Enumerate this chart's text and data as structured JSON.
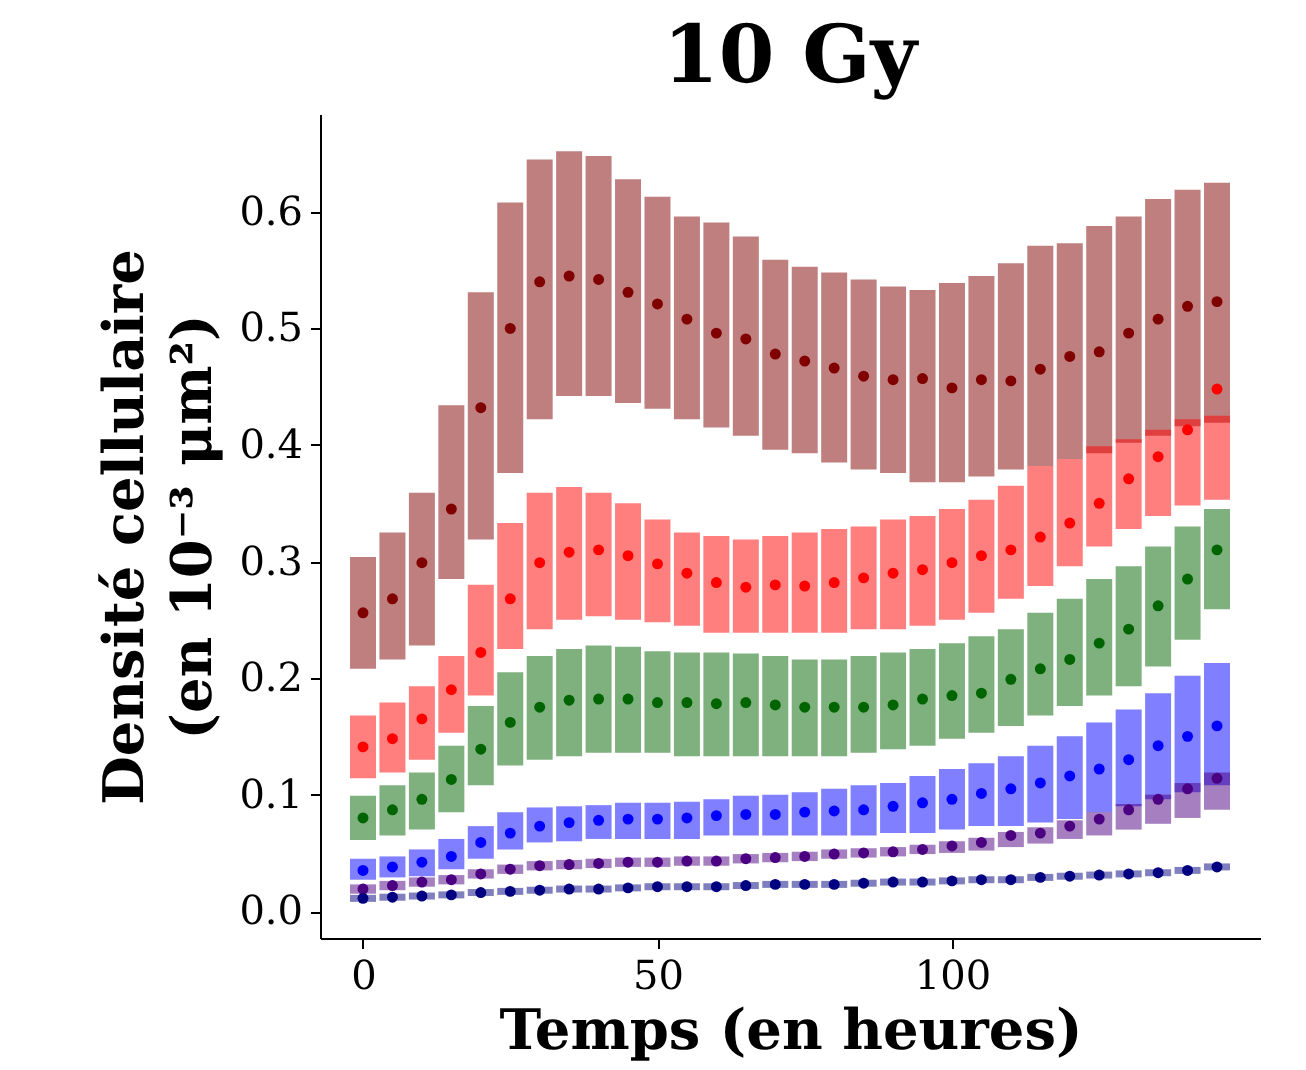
{
  "chart_data": {
    "type": "scatter",
    "title": "10 Gy",
    "xlabel": "Temps (en heures)",
    "ylabel": "Densité cellulaire\n(en 10⁻³ μm²)",
    "marker": "circle",
    "xlim": [
      -7.3,
      152.3
    ],
    "ylim": [
      -0.023,
      0.684
    ],
    "xticks": [
      0,
      50,
      100
    ],
    "yticks": [
      {
        "value": 0,
        "label": "0.0"
      },
      {
        "value": 0.1,
        "label": "0.1"
      },
      {
        "value": 0.2,
        "label": "0.2"
      },
      {
        "value": 0.3,
        "label": "0.3"
      },
      {
        "value": 0.4,
        "label": "0.4"
      },
      {
        "value": 0.5,
        "label": "0.5"
      },
      {
        "value": 0.6,
        "label": "0.6"
      }
    ],
    "x": [
      0,
      5,
      10,
      15,
      20,
      25,
      30,
      35,
      40,
      45,
      50,
      55,
      60,
      65,
      70,
      75,
      80,
      85,
      90,
      95,
      100,
      105,
      110,
      115,
      120,
      125,
      130,
      135,
      140,
      145
    ],
    "series": [
      {
        "color": "#800000",
        "values": [
          0.256,
          0.268,
          0.299,
          0.345,
          0.432,
          0.5,
          0.54,
          0.545,
          0.542,
          0.531,
          0.521,
          0.508,
          0.496,
          0.491,
          0.478,
          0.472,
          0.466,
          0.459,
          0.456,
          0.457,
          0.449,
          0.456,
          0.455,
          0.465,
          0.476,
          0.48,
          0.496,
          0.508,
          0.519,
          0.523
        ],
        "errors": [
          [
            0.208,
            0.304
          ],
          [
            0.216,
            0.325
          ],
          [
            0.228,
            0.359
          ],
          [
            0.285,
            0.434
          ],
          [
            0.319,
            0.531
          ],
          [
            0.376,
            0.608
          ],
          [
            0.422,
            0.645
          ],
          [
            0.442,
            0.652
          ],
          [
            0.442,
            0.648
          ],
          [
            0.436,
            0.628
          ],
          [
            0.431,
            0.613
          ],
          [
            0.422,
            0.596
          ],
          [
            0.415,
            0.591
          ],
          [
            0.408,
            0.579
          ],
          [
            0.396,
            0.559
          ],
          [
            0.393,
            0.553
          ],
          [
            0.385,
            0.548
          ],
          [
            0.379,
            0.542
          ],
          [
            0.376,
            0.536
          ],
          [
            0.368,
            0.533
          ],
          [
            0.368,
            0.539
          ],
          [
            0.373,
            0.545
          ],
          [
            0.379,
            0.556
          ],
          [
            0.382,
            0.571
          ],
          [
            0.388,
            0.573
          ],
          [
            0.393,
            0.588
          ],
          [
            0.402,
            0.596
          ],
          [
            0.408,
            0.611
          ],
          [
            0.416,
            0.619
          ],
          [
            0.419,
            0.625
          ]
        ]
      },
      {
        "color": "#ff0000",
        "values": [
          0.141,
          0.148,
          0.165,
          0.19,
          0.222,
          0.268,
          0.299,
          0.308,
          0.31,
          0.305,
          0.298,
          0.29,
          0.282,
          0.278,
          0.28,
          0.279,
          0.282,
          0.286,
          0.29,
          0.293,
          0.299,
          0.305,
          0.31,
          0.321,
          0.333,
          0.35,
          0.371,
          0.39,
          0.413,
          0.448
        ],
        "errors": [
          [
            0.114,
            0.168
          ],
          [
            0.119,
            0.179
          ],
          [
            0.13,
            0.193
          ],
          [
            0.153,
            0.219
          ],
          [
            0.185,
            0.28
          ],
          [
            0.225,
            0.333
          ],
          [
            0.242,
            0.359
          ],
          [
            0.25,
            0.364
          ],
          [
            0.253,
            0.359
          ],
          [
            0.25,
            0.35
          ],
          [
            0.248,
            0.336
          ],
          [
            0.245,
            0.325
          ],
          [
            0.239,
            0.322
          ],
          [
            0.239,
            0.319
          ],
          [
            0.239,
            0.322
          ],
          [
            0.239,
            0.325
          ],
          [
            0.239,
            0.328
          ],
          [
            0.242,
            0.33
          ],
          [
            0.242,
            0.336
          ],
          [
            0.245,
            0.339
          ],
          [
            0.25,
            0.345
          ],
          [
            0.256,
            0.353
          ],
          [
            0.268,
            0.365
          ],
          [
            0.279,
            0.382
          ],
          [
            0.296,
            0.388
          ],
          [
            0.313,
            0.399
          ],
          [
            0.328,
            0.405
          ],
          [
            0.339,
            0.413
          ],
          [
            0.348,
            0.422
          ],
          [
            0.353,
            0.425
          ]
        ]
      },
      {
        "color": "#006400",
        "values": [
          0.08,
          0.087,
          0.096,
          0.113,
          0.139,
          0.162,
          0.175,
          0.181,
          0.182,
          0.182,
          0.179,
          0.179,
          0.178,
          0.179,
          0.177,
          0.175,
          0.175,
          0.175,
          0.177,
          0.182,
          0.185,
          0.187,
          0.199,
          0.208,
          0.216,
          0.23,
          0.242,
          0.262,
          0.285,
          0.31
        ],
        "errors": [
          [
            0.061,
            0.099
          ],
          [
            0.065,
            0.108
          ],
          [
            0.07,
            0.119
          ],
          [
            0.085,
            0.142
          ],
          [
            0.108,
            0.176
          ],
          [
            0.125,
            0.205
          ],
          [
            0.13,
            0.219
          ],
          [
            0.133,
            0.225
          ],
          [
            0.136,
            0.228
          ],
          [
            0.136,
            0.227
          ],
          [
            0.136,
            0.223
          ],
          [
            0.133,
            0.222
          ],
          [
            0.133,
            0.222
          ],
          [
            0.133,
            0.221
          ],
          [
            0.133,
            0.219
          ],
          [
            0.133,
            0.216
          ],
          [
            0.133,
            0.216
          ],
          [
            0.136,
            0.219
          ],
          [
            0.139,
            0.222
          ],
          [
            0.142,
            0.225
          ],
          [
            0.148,
            0.23
          ],
          [
            0.153,
            0.236
          ],
          [
            0.159,
            0.242
          ],
          [
            0.168,
            0.256
          ],
          [
            0.176,
            0.268
          ],
          [
            0.185,
            0.285
          ],
          [
            0.193,
            0.296
          ],
          [
            0.21,
            0.313
          ],
          [
            0.233,
            0.33
          ],
          [
            0.259,
            0.345
          ]
        ]
      },
      {
        "color": "#0000ff",
        "values": [
          0.035,
          0.038,
          0.042,
          0.047,
          0.059,
          0.067,
          0.073,
          0.076,
          0.078,
          0.079,
          0.079,
          0.08,
          0.082,
          0.083,
          0.083,
          0.085,
          0.086,
          0.087,
          0.09,
          0.093,
          0.096,
          0.101,
          0.105,
          0.11,
          0.116,
          0.122,
          0.13,
          0.142,
          0.15,
          0.159
        ],
        "errors": [
          [
            0.027,
            0.045
          ],
          [
            0.029,
            0.047
          ],
          [
            0.03,
            0.053
          ],
          [
            0.036,
            0.062
          ],
          [
            0.045,
            0.073
          ],
          [
            0.053,
            0.085
          ],
          [
            0.059,
            0.089
          ],
          [
            0.06,
            0.09
          ],
          [
            0.062,
            0.091
          ],
          [
            0.062,
            0.093
          ],
          [
            0.062,
            0.093
          ],
          [
            0.062,
            0.094
          ],
          [
            0.065,
            0.096
          ],
          [
            0.065,
            0.099
          ],
          [
            0.065,
            0.1
          ],
          [
            0.065,
            0.102
          ],
          [
            0.065,
            0.105
          ],
          [
            0.065,
            0.108
          ],
          [
            0.067,
            0.11
          ],
          [
            0.067,
            0.116
          ],
          [
            0.07,
            0.122
          ],
          [
            0.073,
            0.127
          ],
          [
            0.073,
            0.133
          ],
          [
            0.076,
            0.142
          ],
          [
            0.079,
            0.15
          ],
          [
            0.085,
            0.162
          ],
          [
            0.09,
            0.173
          ],
          [
            0.096,
            0.187
          ],
          [
            0.102,
            0.202
          ],
          [
            0.108,
            0.213
          ]
        ]
      },
      {
        "color": "#4b0082",
        "values": [
          0.019,
          0.022,
          0.025,
          0.027,
          0.032,
          0.036,
          0.039,
          0.04,
          0.041,
          0.042,
          0.042,
          0.043,
          0.043,
          0.045,
          0.046,
          0.047,
          0.049,
          0.05,
          0.051,
          0.053,
          0.056,
          0.059,
          0.065,
          0.067,
          0.073,
          0.079,
          0.087,
          0.096,
          0.105,
          0.114
        ],
        "errors": [
          0.004,
          0.004,
          0.004,
          0.004,
          0.004,
          0.004,
          0.004,
          0.004,
          0.004,
          0.004,
          0.004,
          0.004,
          0.004,
          0.004,
          0.004,
          0.004,
          0.004,
          0.004,
          0.004,
          0.004,
          [
            0.05,
            0.06
          ],
          [
            0.052,
            0.063
          ],
          [
            0.055,
            0.068
          ],
          [
            0.058,
            0.072
          ],
          [
            0.062,
            0.078
          ],
          [
            0.065,
            0.085
          ],
          [
            0.07,
            0.092
          ],
          [
            0.075,
            0.1
          ],
          [
            0.08,
            0.11
          ],
          [
            0.087,
            0.119
          ]
        ]
      },
      {
        "color": "#000080",
        "values": [
          0.011,
          0.012,
          0.013,
          0.014,
          0.016,
          0.017,
          0.018,
          0.019,
          0.019,
          0.02,
          0.021,
          0.021,
          0.021,
          0.022,
          0.023,
          0.023,
          0.023,
          0.024,
          0.025,
          0.025,
          0.026,
          0.027,
          0.027,
          0.029,
          0.03,
          0.031,
          0.032,
          0.033,
          0.035,
          0.038
        ],
        "errors": [
          0.003,
          0.003,
          0.003,
          0.003,
          0.003,
          0.003,
          0.003,
          0.003,
          0.003,
          0.003,
          0.003,
          0.003,
          0.003,
          0.003,
          0.003,
          0.003,
          0.003,
          0.003,
          0.003,
          0.003,
          0.003,
          0.003,
          0.003,
          0.003,
          0.003,
          0.003,
          0.003,
          0.003,
          0.003,
          0.003
        ]
      }
    ]
  }
}
